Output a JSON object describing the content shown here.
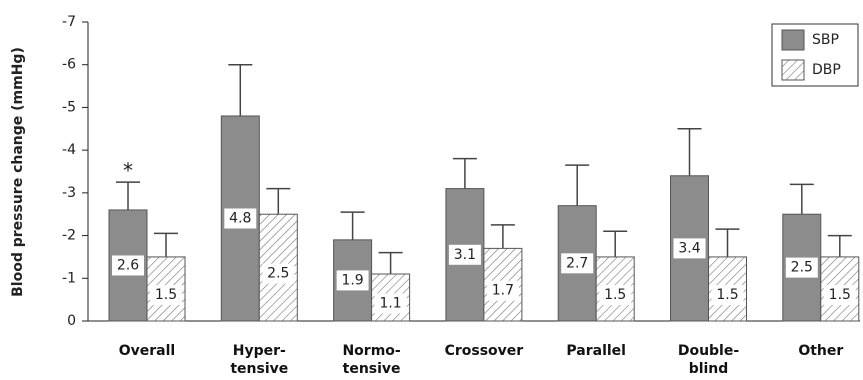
{
  "chart_data": {
    "type": "bar",
    "y_label": "Blood pressure change (mmHg)",
    "categories": [
      "Overall",
      "Hyper-\ntensive",
      "Normo-\ntensive",
      "Crossover",
      "Parallel",
      "Double-\nblind",
      "Other"
    ],
    "series": [
      {
        "name": "SBP",
        "color": "#8c8c8c",
        "values": [
          -2.6,
          -4.8,
          -1.9,
          -3.1,
          -2.7,
          -3.4,
          -2.5
        ],
        "value_labels": [
          "2.6",
          "4.8",
          "1.9",
          "3.1",
          "2.7",
          "3.4",
          "2.5"
        ],
        "errors": [
          0.65,
          1.2,
          0.65,
          0.7,
          0.95,
          1.1,
          0.7
        ]
      },
      {
        "name": "DBP",
        "color": "#ffffff",
        "pattern": "hatch",
        "values": [
          -1.5,
          -2.5,
          -1.1,
          -1.7,
          -1.5,
          -1.5,
          -1.5
        ],
        "value_labels": [
          "1.5",
          "2.5",
          "1.1",
          "1.7",
          "1.5",
          "1.5",
          "1.5"
        ],
        "errors": [
          0.55,
          0.6,
          0.5,
          0.55,
          0.6,
          0.65,
          0.5
        ]
      }
    ],
    "annotation": "*",
    "ylim": [
      0,
      -7
    ],
    "yticks": [
      0,
      -1,
      -2,
      -3,
      -4,
      -5,
      -6,
      -7
    ],
    "legend": "top-right"
  }
}
